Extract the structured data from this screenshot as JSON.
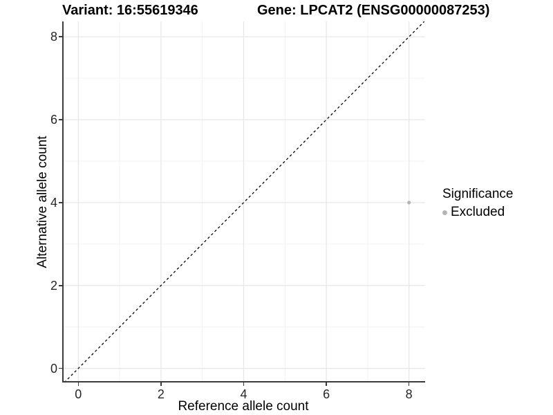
{
  "chart_data": {
    "type": "scatter",
    "title_left": "Variant: 16:55619346",
    "title_right": "Gene: LPCAT2 (ENSG00000087253)",
    "xlabel": "Reference allele count",
    "ylabel": "Alternative allele count",
    "xlim": [
      -0.39,
      8.39
    ],
    "ylim": [
      -0.34,
      8.37
    ],
    "x_ticks": [
      0,
      2,
      4,
      6,
      8
    ],
    "y_ticks": [
      0,
      2,
      4,
      6,
      8
    ],
    "x_minor_ticks": [
      1,
      3,
      5,
      7
    ],
    "y_minor_ticks": [
      1,
      3,
      5,
      7
    ],
    "grid": true,
    "identity_line": {
      "slope": 1,
      "intercept": 0,
      "style": "dashed",
      "color": "#000000"
    },
    "series": [
      {
        "name": "Excluded",
        "color": "#b5b5b5",
        "points": [
          {
            "x": 8,
            "y": 4
          }
        ]
      }
    ],
    "legend": {
      "title": "Significance",
      "position": "right"
    }
  },
  "colors": {
    "grid_major": "#e6e6e6",
    "grid_minor": "#f2f2f2",
    "axis_line": "#3a3a3a",
    "tick_label": "#262626",
    "point": "#b5b5b5"
  }
}
